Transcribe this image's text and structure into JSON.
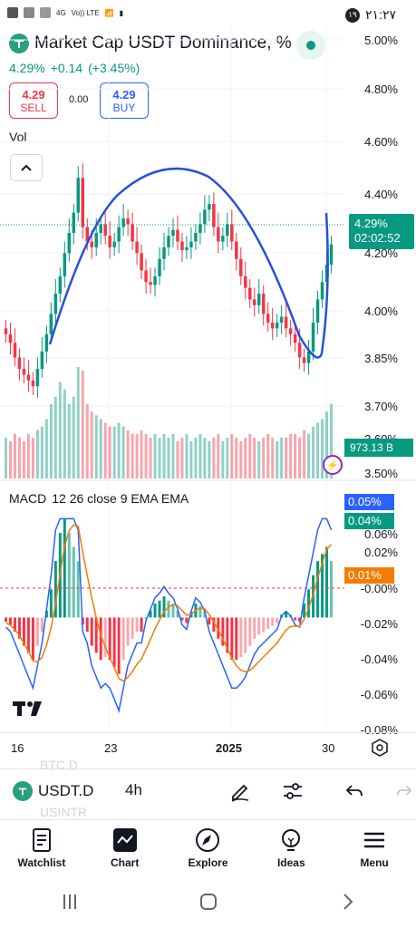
{
  "status_bar": {
    "time": "۲۱:۲۷",
    "badge": "۱۹",
    "network": "4G",
    "volte": "Vo)) LTE"
  },
  "header": {
    "title": "Market Cap USDT Dominance, %",
    "price": "4.29%",
    "change": "+0.14",
    "change_pct": "(+3.45%)"
  },
  "trade": {
    "sell_price": "4.29",
    "sell_label": "SELL",
    "spread": "0.00",
    "buy_price": "4.29",
    "buy_label": "BUY"
  },
  "pane": {
    "vol_label": "Vol"
  },
  "axis": {
    "price_ticks": [
      "5.00%",
      "4.80%",
      "4.60%",
      "4.40%",
      "4.20%",
      "4.00%",
      "3.85%",
      "3.70%",
      "3.60%",
      "3.50%"
    ],
    "macd_ticks": [
      "0.06%",
      "0.02%",
      "-0.00%",
      "-0.02%",
      "-0.04%",
      "-0.06%",
      "-0.08%"
    ],
    "time_labels": [
      "16",
      "23",
      "2025",
      "30"
    ]
  },
  "tags": {
    "price": "4.29%",
    "countdown": "02:02:52",
    "volume": "973.13 B",
    "macd": "0.05%",
    "hist": "0.04%",
    "signal": "0.01%"
  },
  "macd": {
    "name": "MACD",
    "params": "12 26 close 9 EMA EMA"
  },
  "toolbar": {
    "symbol": "USDT.D",
    "interval": "4h",
    "ghost_above": "BTC.D",
    "ghost_below": "USINTR"
  },
  "nav": [
    {
      "label": "Watchlist",
      "icon": "watchlist-icon"
    },
    {
      "label": "Chart",
      "icon": "chart-icon"
    },
    {
      "label": "Explore",
      "icon": "compass-icon"
    },
    {
      "label": "Ideas",
      "icon": "lightbulb-icon"
    },
    {
      "label": "Menu",
      "icon": "menu-icon"
    }
  ],
  "colors": {
    "up": "#089981",
    "down": "#f23645",
    "accent": "#2962ff",
    "signal": "#f57c00"
  },
  "chart_data": {
    "type": "candlestick",
    "title": "Market Cap USDT Dominance, %",
    "interval": "4h",
    "close": [
      3.98,
      3.95,
      3.9,
      3.86,
      3.84,
      3.82,
      3.8,
      3.86,
      3.92,
      3.98,
      4.05,
      4.12,
      4.18,
      4.26,
      4.33,
      4.4,
      4.52,
      4.35,
      4.3,
      4.28,
      4.33,
      4.36,
      4.32,
      4.28,
      4.3,
      4.35,
      4.38,
      4.36,
      4.3,
      4.26,
      4.2,
      4.16,
      4.15,
      4.18,
      4.24,
      4.28,
      4.32,
      4.34,
      4.3,
      4.27,
      4.28,
      4.3,
      4.33,
      4.36,
      4.41,
      4.43,
      4.35,
      4.3,
      4.32,
      4.36,
      4.3,
      4.24,
      4.18,
      4.14,
      4.1,
      4.08,
      4.12,
      4.05,
      4.02,
      4.0,
      4.02,
      4.04,
      4.0,
      3.98,
      3.95,
      3.9,
      3.88,
      3.92,
      4.02,
      4.1,
      4.16,
      4.22,
      4.29
    ],
    "volume": [
      0.55,
      0.5,
      0.6,
      0.55,
      0.5,
      0.6,
      0.55,
      0.65,
      0.7,
      0.8,
      1.0,
      1.1,
      1.3,
      1.2,
      1.0,
      1.1,
      1.5,
      1.45,
      1.0,
      0.9,
      0.85,
      0.8,
      0.75,
      0.7,
      0.7,
      0.75,
      0.7,
      0.65,
      0.6,
      0.6,
      0.65,
      0.6,
      0.55,
      0.6,
      0.55,
      0.6,
      0.55,
      0.6,
      0.5,
      0.55,
      0.6,
      0.5,
      0.55,
      0.6,
      0.55,
      0.5,
      0.55,
      0.6,
      0.5,
      0.55,
      0.6,
      0.55,
      0.5,
      0.55,
      0.6,
      0.55,
      0.5,
      0.55,
      0.6,
      0.55,
      0.5,
      0.55,
      0.55,
      0.6,
      0.6,
      0.55,
      0.65,
      0.6,
      0.7,
      0.75,
      0.8,
      0.9,
      1.0
    ],
    "macd_hist": [
      -0.003,
      -0.005,
      -0.01,
      -0.015,
      -0.02,
      -0.025,
      -0.03,
      -0.02,
      -0.01,
      0.005,
      0.02,
      0.04,
      0.06,
      0.07,
      0.06,
      0.05,
      0.04,
      -0.005,
      -0.01,
      -0.02,
      -0.025,
      -0.03,
      -0.028,
      -0.03,
      -0.035,
      -0.04,
      -0.03,
      -0.02,
      -0.015,
      -0.01,
      -0.01,
      0.0,
      0.005,
      0.01,
      0.012,
      0.015,
      0.012,
      0.01,
      0.005,
      -0.002,
      -0.004,
      0.004,
      0.01,
      0.008,
      0.004,
      -0.005,
      -0.01,
      -0.015,
      -0.02,
      -0.025,
      -0.03,
      -0.03,
      -0.028,
      -0.025,
      -0.02,
      -0.015,
      -0.012,
      -0.01,
      -0.008,
      -0.006,
      -0.004,
      0.002,
      0.004,
      0.002,
      -0.002,
      -0.003,
      0.01,
      0.02,
      0.03,
      0.04,
      0.045,
      0.05,
      0.04
    ],
    "y_range": [
      3.5,
      5.0
    ],
    "macd_range": [
      -0.08,
      0.06
    ],
    "x_labels": [
      "16",
      "23",
      "2025",
      "30"
    ]
  }
}
